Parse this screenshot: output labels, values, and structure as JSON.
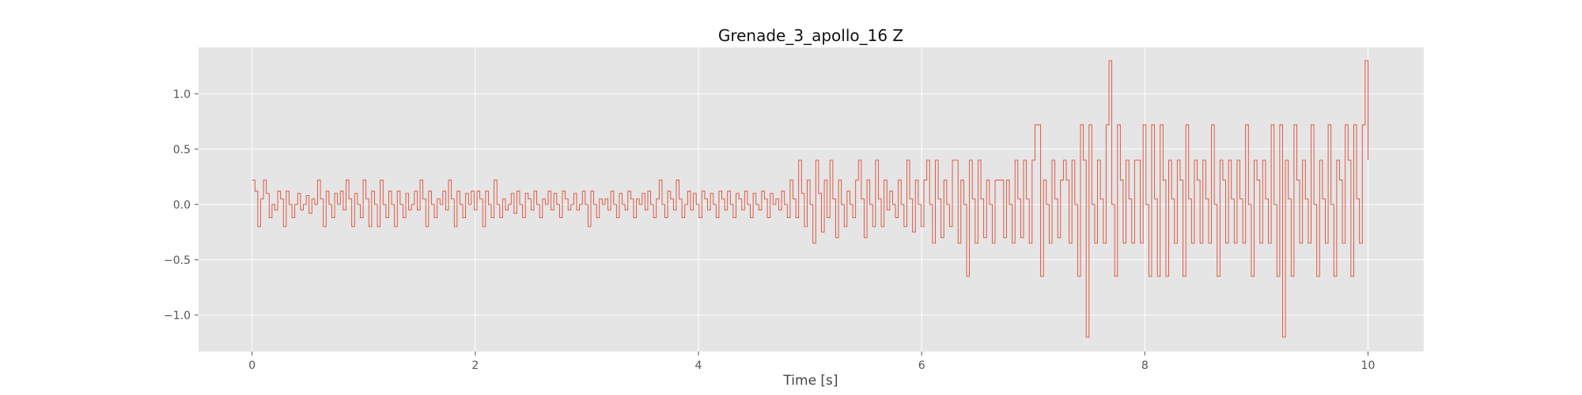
{
  "chart_data": {
    "type": "line",
    "title": "Grenade_3_apollo_16 Z",
    "xlabel": "Time [s]",
    "ylabel": "",
    "xlim": [
      -0.48,
      10.5
    ],
    "ylim": [
      -1.33,
      1.42
    ],
    "x_ticks": [
      0,
      2,
      4,
      6,
      8,
      10
    ],
    "x_tick_labels": [
      "0",
      "2",
      "4",
      "6",
      "8",
      "10"
    ],
    "y_ticks": [
      -1.0,
      -0.5,
      0.0,
      0.5,
      1.0
    ],
    "y_tick_labels": [
      "−1.0",
      "−0.5",
      "0.0",
      "0.5",
      "1.0"
    ],
    "grid": true,
    "style": "ggplot",
    "series": [
      {
        "color": "#e24a33",
        "step": true,
        "x_start": 0,
        "x_end": 10,
        "x_step": 0.02,
        "values": [
          0.22,
          0.12,
          -0.2,
          0.05,
          0.22,
          0.1,
          -0.12,
          0.0,
          -0.05,
          0.12,
          0.05,
          -0.2,
          0.12,
          0.0,
          -0.12,
          0.0,
          0.1,
          -0.05,
          0.0,
          0.08,
          -0.08,
          0.05,
          0.0,
          0.22,
          0.05,
          -0.2,
          0.12,
          0.0,
          -0.12,
          0.1,
          0.0,
          0.12,
          -0.05,
          0.22,
          0.05,
          -0.2,
          0.1,
          0.0,
          -0.12,
          0.22,
          0.05,
          -0.2,
          0.12,
          0.0,
          -0.2,
          0.22,
          0.0,
          -0.12,
          0.12,
          0.0,
          -0.2,
          0.12,
          0.0,
          -0.12,
          0.1,
          -0.05,
          0.0,
          0.12,
          -0.05,
          0.22,
          0.05,
          -0.2,
          0.12,
          0.0,
          -0.12,
          0.05,
          0.0,
          0.12,
          -0.05,
          0.22,
          0.05,
          -0.2,
          0.12,
          0.0,
          -0.12,
          0.1,
          0.0,
          0.12,
          -0.05,
          0.12,
          0.05,
          -0.2,
          0.12,
          0.0,
          -0.12,
          0.22,
          0.0,
          -0.12,
          0.05,
          -0.05,
          0.0,
          0.1,
          -0.08,
          0.12,
          0.0,
          -0.12,
          0.1,
          0.05,
          -0.05,
          0.12,
          0.0,
          -0.12,
          0.05,
          0.0,
          0.12,
          -0.05,
          0.1,
          0.0,
          -0.12,
          0.12,
          0.05,
          -0.05,
          0.0,
          0.1,
          -0.05,
          0.0,
          0.12,
          0.0,
          -0.2,
          0.12,
          0.0,
          -0.12,
          0.05,
          0.0,
          0.05,
          -0.05,
          0.12,
          0.0,
          -0.12,
          0.1,
          0.0,
          -0.05,
          0.12,
          0.05,
          -0.12,
          0.05,
          0.0,
          0.1,
          -0.05,
          0.12,
          0.0,
          -0.12,
          0.05,
          0.22,
          0.0,
          -0.12,
          0.12,
          0.05,
          -0.05,
          0.22,
          0.05,
          -0.12,
          0.0,
          0.12,
          -0.05,
          0.1,
          0.0,
          -0.12,
          0.12,
          0.05,
          -0.05,
          0.1,
          0.0,
          -0.12,
          0.12,
          0.05,
          -0.05,
          0.12,
          0.0,
          -0.12,
          0.1,
          0.05,
          -0.05,
          0.12,
          0.0,
          -0.12,
          0.1,
          0.0,
          -0.05,
          0.12,
          0.05,
          -0.12,
          0.1,
          0.0,
          0.05,
          -0.05,
          0.12,
          0.0,
          -0.12,
          0.22,
          0.05,
          -0.12,
          0.4,
          0.1,
          -0.2,
          0.22,
          0.0,
          -0.35,
          0.4,
          0.1,
          -0.25,
          0.22,
          -0.12,
          0.4,
          0.05,
          -0.3,
          0.22,
          0.0,
          -0.2,
          0.12,
          0.0,
          -0.12,
          0.22,
          0.4,
          0.05,
          -0.3,
          0.22,
          0.0,
          -0.2,
          0.4,
          0.05,
          -0.2,
          0.22,
          -0.05,
          0.12,
          0.0,
          -0.12,
          0.22,
          0.0,
          -0.2,
          0.4,
          0.05,
          -0.25,
          0.22,
          0.0,
          -0.2,
          0.22,
          0.4,
          0.0,
          -0.35,
          0.4,
          0.05,
          -0.3,
          0.22,
          0.0,
          -0.2,
          0.4,
          0.4,
          -0.35,
          0.22,
          0.0,
          -0.65,
          0.4,
          0.05,
          -0.35,
          0.4,
          0.05,
          -0.3,
          0.22,
          0.0,
          -0.35,
          0.22,
          0.22,
          0.22,
          -0.3,
          0.22,
          0.0,
          -0.35,
          0.4,
          0.05,
          -0.3,
          0.4,
          0.05,
          -0.35,
          0.4,
          0.72,
          0.72,
          -0.65,
          0.22,
          0.0,
          -0.35,
          0.4,
          0.05,
          -0.3,
          0.22,
          0.4,
          0.22,
          -0.35,
          0.4,
          0.0,
          -0.65,
          0.72,
          0.4,
          -1.2,
          0.72,
          0.0,
          -0.35,
          0.4,
          0.05,
          -0.35,
          0.72,
          1.3,
          0.0,
          -0.65,
          0.72,
          0.22,
          -0.35,
          0.4,
          0.05,
          -0.35,
          0.4,
          0.4,
          -0.35,
          0.72,
          0.0,
          -0.65,
          0.72,
          0.05,
          -0.65,
          0.72,
          0.22,
          -0.65,
          0.4,
          0.05,
          -0.35,
          0.4,
          0.22,
          -0.65,
          0.72,
          0.05,
          -0.35,
          0.4,
          0.22,
          -0.35,
          0.4,
          0.05,
          -0.35,
          0.72,
          0.0,
          -0.65,
          0.4,
          0.22,
          -0.35,
          0.4,
          0.05,
          -0.35,
          0.4,
          0.05,
          -0.35,
          0.72,
          0.0,
          -0.65,
          0.4,
          0.22,
          -0.35,
          0.4,
          0.05,
          -0.35,
          0.72,
          0.0,
          -0.65,
          0.72,
          -1.2,
          0.4,
          0.05,
          -0.65,
          0.72,
          0.22,
          -0.35,
          0.4,
          0.05,
          -0.35,
          0.72,
          0.0,
          -0.65,
          0.4,
          0.05,
          -0.35,
          0.72,
          0.0,
          -0.65,
          0.4,
          0.22,
          -0.35,
          0.72,
          0.4,
          -0.65,
          0.72,
          0.05,
          -0.35,
          0.72,
          1.3,
          0.4
        ]
      }
    ]
  }
}
